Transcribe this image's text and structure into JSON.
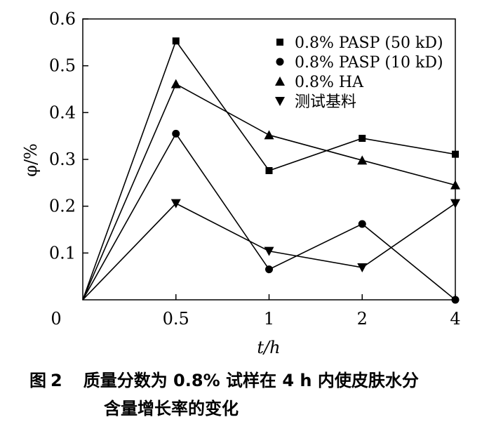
{
  "chart_data": {
    "type": "line",
    "categories": [
      "0",
      "0.5",
      "1",
      "2",
      "4"
    ],
    "ylim": [
      0,
      0.6
    ],
    "yticks": [
      "0.1",
      "0.2",
      "0.3",
      "0.4",
      "0.5",
      "0.6"
    ],
    "origin_label": "0",
    "xlabel": "t/h",
    "ylabel": "φ/%",
    "legend_position": "top-right",
    "series": [
      {
        "name": "0.8% PASP (50 kD)",
        "marker": "square",
        "values": [
          0,
          0.553,
          0.276,
          0.345,
          0.311
        ]
      },
      {
        "name": "0.8% PASP (10 kD)",
        "marker": "circle",
        "values": [
          0,
          0.355,
          0.065,
          0.162,
          0.0
        ]
      },
      {
        "name": "0.8% HA",
        "marker": "triangle-up",
        "values": [
          0,
          0.461,
          0.352,
          0.298,
          0.245
        ]
      },
      {
        "name": "测试基料",
        "marker": "triangle-down",
        "values": [
          0,
          0.206,
          0.104,
          0.069,
          0.206
        ]
      }
    ]
  },
  "caption": {
    "fig_label": "图",
    "fig_number": "2",
    "line1": "质量分数为 0.8% 试样在 4 h 内使皮肤水分",
    "line2": "含量增长率的变化"
  }
}
